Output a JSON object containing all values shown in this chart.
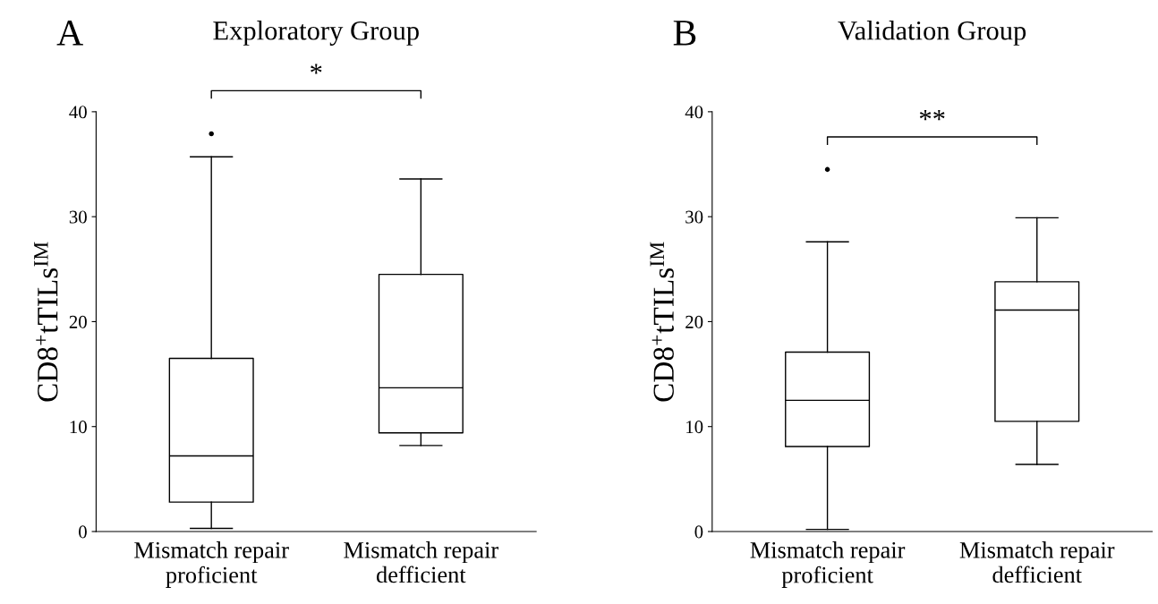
{
  "chart_data": [
    {
      "type": "box",
      "title": "Exploratory Group",
      "ylabel": "CD8$^{+}$tTILs$^{IM}$",
      "annotations": [
        "A",
        "*"
      ],
      "categories": [
        "Mismatch repair\nproficient",
        "Mismatch repair\ndefficient"
      ],
      "ylim": [
        0,
        40
      ],
      "yticks": [
        0,
        10,
        20,
        30,
        40
      ],
      "grid": false,
      "boxes": [
        {
          "low": 0.3,
          "q1": 2.8,
          "median": 7.2,
          "q3": 16.5,
          "high": 35.7,
          "outliers": [
            37.9
          ]
        },
        {
          "low": 8.2,
          "q1": 9.4,
          "median": 13.7,
          "q3": 24.5,
          "high": 33.6
        }
      ]
    },
    {
      "type": "box",
      "title": "Validation Group",
      "ylabel": "CD8$^{+}$tTILs$^{IM}$",
      "annotations": [
        "B",
        "**"
      ],
      "categories": [
        "Mismatch repair\nproficient",
        "Mismatch repair\ndefficient"
      ],
      "ylim": [
        0,
        40
      ],
      "yticks": [
        0,
        10,
        20,
        30,
        40
      ],
      "grid": false,
      "boxes": [
        {
          "low": 0.2,
          "q1": 8.1,
          "median": 12.5,
          "q3": 17.1,
          "high": 27.6,
          "outliers": [
            34.5
          ]
        },
        {
          "low": 6.4,
          "q1": 10.5,
          "median": 21.1,
          "q3": 23.8,
          "high": 29.9
        }
      ]
    }
  ]
}
